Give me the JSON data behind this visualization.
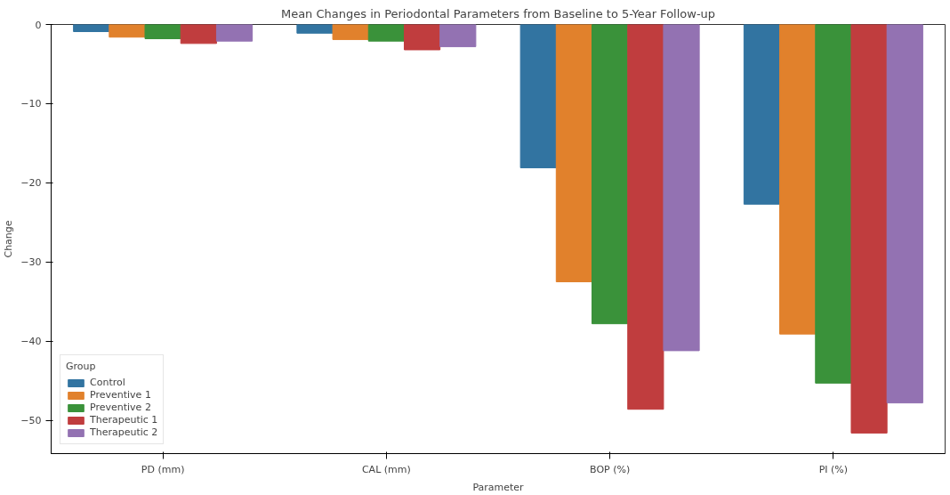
{
  "chart_data": {
    "type": "bar",
    "title": "Mean Changes in Periodontal Parameters from Baseline to 5-Year Follow-up",
    "xlabel": "Parameter",
    "ylabel": "Change",
    "legend_title": "Group",
    "categories": [
      "PD (mm)",
      "CAL (mm)",
      "BOP (%)",
      "PI (%)"
    ],
    "series": [
      {
        "name": "Control",
        "color": "#3274a1",
        "values": [
          -0.9,
          -1.1,
          -18.1,
          -22.7
        ]
      },
      {
        "name": "Preventive 1",
        "color": "#e1812c",
        "values": [
          -1.6,
          -1.9,
          -32.5,
          -39.1
        ]
      },
      {
        "name": "Preventive 2",
        "color": "#3a923a",
        "values": [
          -1.8,
          -2.1,
          -37.8,
          -45.3
        ]
      },
      {
        "name": "Therapeutic 1",
        "color": "#c03d3e",
        "values": [
          -2.4,
          -3.2,
          -48.6,
          -51.6
        ]
      },
      {
        "name": "Therapeutic 2",
        "color": "#9372b2",
        "values": [
          -2.1,
          -2.8,
          -41.2,
          -47.8
        ]
      }
    ],
    "ylim": [
      -54.2,
      0
    ],
    "yticks": [
      -50,
      -40,
      -30,
      -20,
      -10,
      0
    ],
    "grid": false,
    "legend": "bottom left"
  }
}
